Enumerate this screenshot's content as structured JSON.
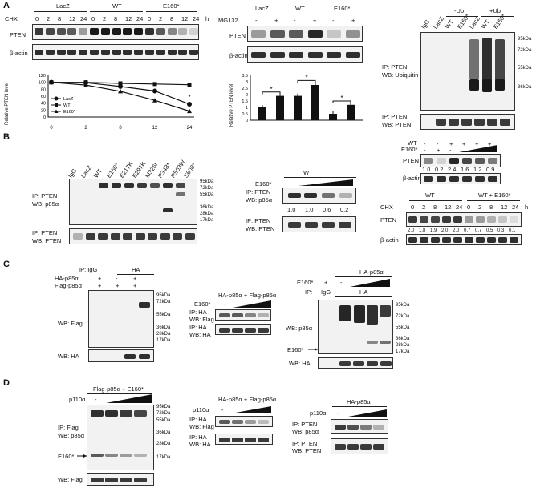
{
  "panels": {
    "A": "A",
    "B": "B",
    "C": "C",
    "D": "D"
  },
  "a": {
    "groups": [
      "LacZ",
      "WT",
      "E160*"
    ],
    "chx": "CHX",
    "times": [
      "0",
      "2",
      "8",
      "12",
      "24"
    ],
    "h": "h",
    "rows": [
      "PTEN",
      "β-actin"
    ],
    "mg132": "MG132",
    "pm": [
      "-",
      "+",
      "-",
      "+",
      "-",
      "+"
    ],
    "ub_groups": [
      "-Ub",
      "+Ub"
    ],
    "ub_lanes": [
      "IgG",
      "LacZ",
      "WT",
      "E160*",
      "LacZ",
      "WT",
      "E160*"
    ],
    "ub_blot1": [
      "IP: PTEN",
      "WB: Ubiquitin"
    ],
    "ub_blot2": [
      "IP: PTEN",
      "WB: PTEN"
    ],
    "mw": [
      "95kDa",
      "72kDa",
      "55kDa",
      "36kDa"
    ]
  },
  "chart_data": [
    {
      "type": "line",
      "ylabel": "Relative PTEN level",
      "x": [
        "0",
        "2",
        "8",
        "12",
        "24"
      ],
      "ylim": [
        0,
        120
      ],
      "yticks": [
        "0",
        "20",
        "40",
        "60",
        "80",
        "100",
        "120"
      ],
      "series": [
        {
          "name": "LacZ",
          "values": [
            100,
            99,
            88,
            75,
            37
          ]
        },
        {
          "name": "WT",
          "values": [
            100,
            100,
            97,
            95,
            93
          ]
        },
        {
          "name": "E160*",
          "values": [
            100,
            92,
            74,
            48,
            17
          ]
        }
      ],
      "annotations": [
        "*",
        "*"
      ],
      "legend": "bottom-left"
    },
    {
      "type": "bar",
      "ylabel": "Relative PTEN level",
      "ylim": [
        0,
        3.5
      ],
      "yticks": [
        "0",
        "0.5",
        "1",
        "1.5",
        "2",
        "2.5",
        "3",
        "3.5"
      ],
      "values": [
        1.0,
        1.9,
        1.9,
        2.75,
        0.5,
        1.2
      ],
      "annotations": [
        "*",
        "*",
        "*"
      ]
    }
  ],
  "b": {
    "lanes": [
      "IgG",
      "LacZ",
      "WT",
      "E160*",
      "E217K",
      "E297K",
      "M326I",
      "R348*",
      "R503W",
      "S608*"
    ],
    "blot1": [
      "IP: PTEN",
      "WB: p85α"
    ],
    "blot2": [
      "IP: PTEN",
      "WB: PTEN"
    ],
    "mw": [
      "95kDa",
      "72kDa",
      "55kDa",
      "36kDa",
      "28kDa",
      "17kDa"
    ],
    "mid_wt": "WT",
    "mid_e160": "E160*",
    "mid_blot1": [
      "IP: PTEN",
      "WB: p85α"
    ],
    "mid_vals": [
      "1.0",
      "1.0",
      "0.6",
      "0.2"
    ],
    "mid_blot2": [
      "IP: PTEN",
      "WB: PTEN"
    ],
    "r_wt": "WT",
    "r_e160": "E160*",
    "r_wt_pm": [
      "-",
      "-",
      "+",
      "+",
      "+",
      "+"
    ],
    "r_e_pm": [
      "-",
      "+",
      "-"
    ],
    "r_rows": [
      "PTEN",
      "β-actin"
    ],
    "r_vals": [
      "1.0",
      "0.2",
      "2.4",
      "1.6",
      "1.2",
      "0.9"
    ],
    "cx_cond": [
      "WT",
      "WT + E160*"
    ],
    "cx_cxh": "CHX",
    "cx_times": [
      "0",
      "2",
      "8",
      "12",
      "24",
      "0",
      "2",
      "8",
      "12",
      "24"
    ],
    "cx_h": "h",
    "cx_rows": [
      "PTEN",
      "β-actin"
    ],
    "cx_vals": [
      "2.0",
      "1.8",
      "1.9",
      "2.0",
      "2.0",
      "0.7",
      "0.7",
      "0.5",
      "0.3",
      "0.1"
    ]
  },
  "c": {
    "ip": "IP: IgG",
    "ha": "HA",
    "row_ha": "HA-p85α",
    "row_flag": "Flag-p85α",
    "ha_pm": [
      "+",
      "-",
      "+"
    ],
    "flag_pm": [
      "+",
      "+",
      "+"
    ],
    "wb1": "WB: Flag",
    "wb2": "WB: HA",
    "mw": [
      "95kDa",
      "72kDa",
      "55kDa",
      "36kDa",
      "28kDa",
      "17kDa"
    ],
    "mid_title": "HA-p85α + Flag-p85α",
    "mid_e160": "E160*",
    "mid_minus": "-",
    "mid_blot1": [
      "IP: HA",
      "WB: Flag"
    ],
    "mid_blot2": [
      "IP: HA",
      "WB: HA"
    ],
    "r_title": "HA-p85α",
    "r_e160": "E160*",
    "r_plus": "+",
    "r_minus": "-",
    "r_ip": "IP:",
    "r_igg": "IgG",
    "r_ha": "HA",
    "r_wb1": "WB: p85α",
    "r_arrow": "E160*",
    "r_wb2": "WB: HA",
    "r_mw": [
      "95kDa",
      "72kDa",
      "55kDa",
      "36kDa",
      "28kDa",
      "17kDa"
    ]
  },
  "d": {
    "title": "Flag-p85α + E160*",
    "p110": "p110α",
    "minus": "-",
    "blot1": [
      "IP: Flag",
      "WB: p85α"
    ],
    "arrow": "E160*",
    "wb2": "WB: Flag",
    "mw": [
      "95kDa",
      "72kDa",
      "55kDa",
      "36kDa",
      "28kDa",
      "17kDa"
    ],
    "mid_title": "HA-p85α + Flag-p85α",
    "mid_p110": "p110α",
    "mid_minus": "-",
    "mid_blot1": [
      "IP: HA",
      "WB: Flag"
    ],
    "mid_blot2": [
      "IP: HA",
      "WB: HA"
    ],
    "r_title": "HA-p85α",
    "r_p110": "p110α",
    "r_minus": "-",
    "r_blot1": [
      "IP: PTEN",
      "WB: p85α"
    ],
    "r_blot2": [
      "IP: PTEN",
      "WB: PTEN"
    ]
  }
}
